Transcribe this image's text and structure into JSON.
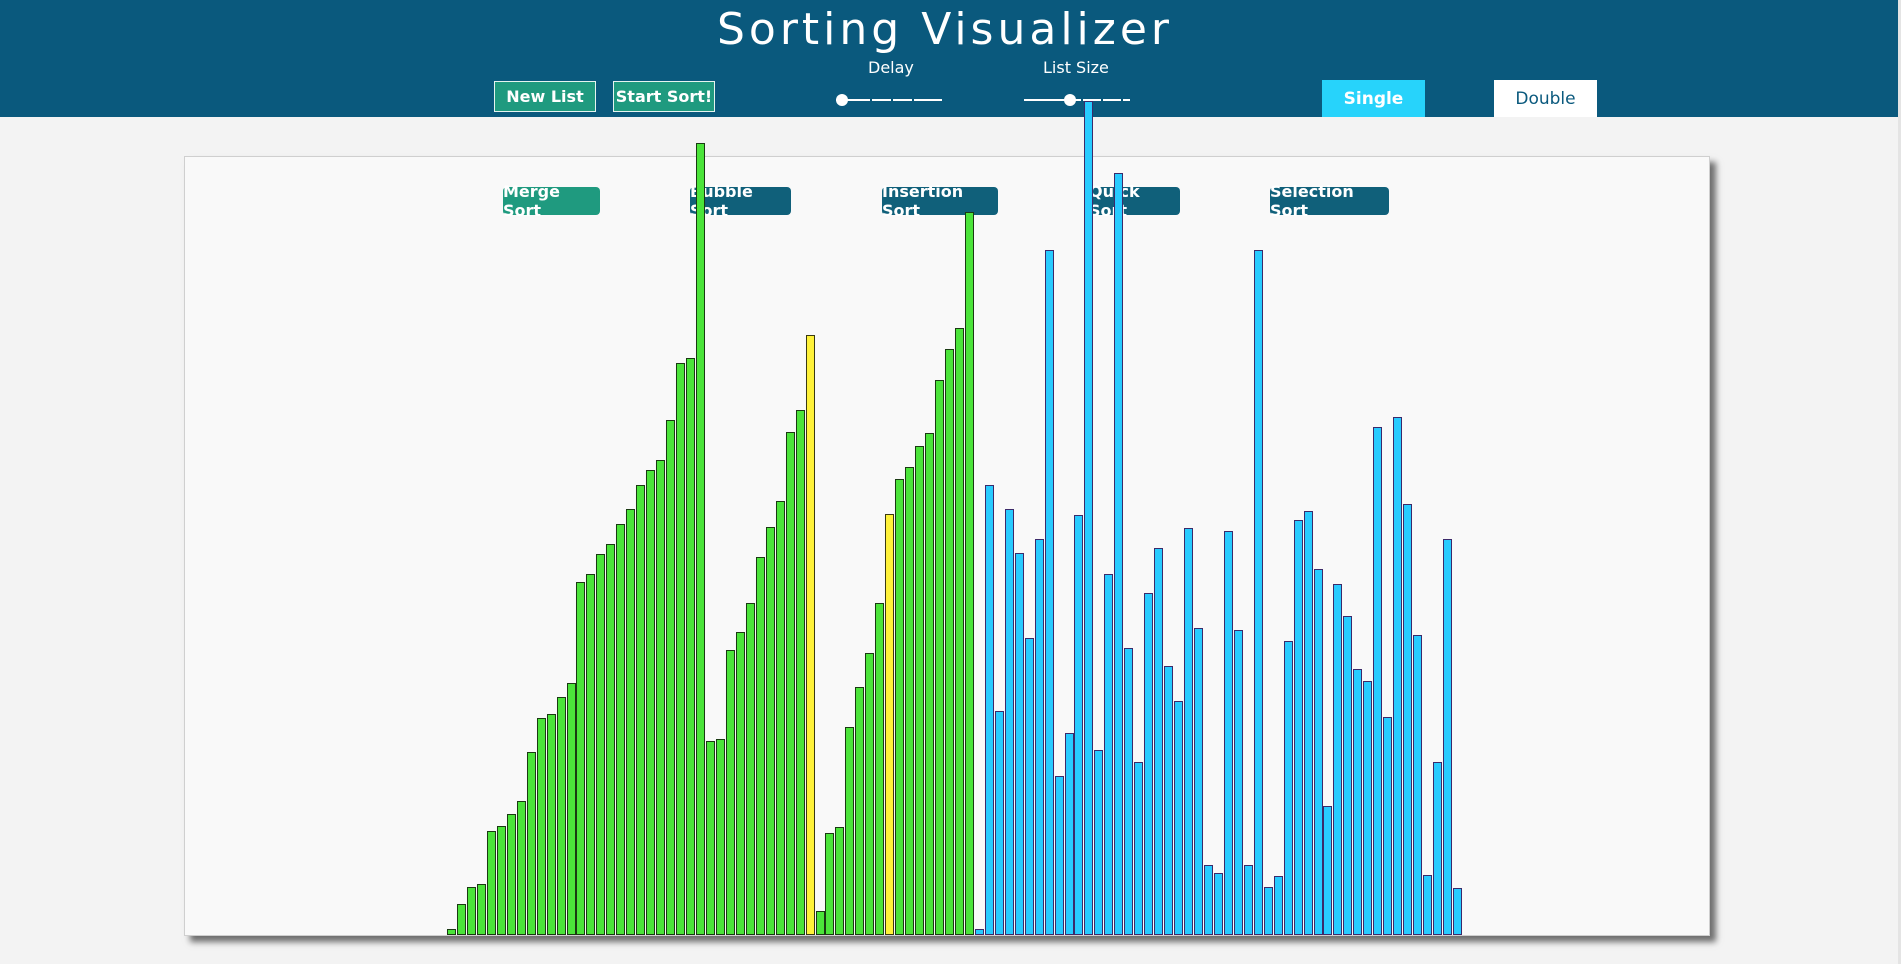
{
  "header": {
    "title": "Sorting Visualizer",
    "new_list_label": "New List",
    "start_sort_label": "Start Sort!",
    "delay_label": "Delay",
    "list_size_label": "List Size",
    "delay_value_fraction": 0.0,
    "list_size_value_fraction": 0.43,
    "mode_single_label": "Single",
    "mode_double_label": "Double",
    "mode_selected": "Single"
  },
  "algorithms": [
    {
      "label": "Merge Sort",
      "selected": true
    },
    {
      "label": "Bubble Sort",
      "selected": false
    },
    {
      "label": "Insertion Sort",
      "selected": false
    },
    {
      "label": "Quick Sort",
      "selected": false
    },
    {
      "label": "Selection Sort",
      "selected": false
    }
  ],
  "colors": {
    "header_bg": "#0a597d",
    "button_green": "#1f9a7f",
    "sorted_bar": "#4be43a",
    "compare_bar": "#fff23a",
    "unsorted_bar": "#28cbff",
    "single_active": "#27d3fb"
  },
  "bars": {
    "max_value": 700,
    "values": [
      6,
      31,
      48,
      52,
      105,
      110,
      122,
      135,
      185,
      219,
      223,
      240,
      255,
      357,
      365,
      385,
      395,
      415,
      430,
      455,
      470,
      480,
      520,
      578,
      583,
      800,
      196,
      198,
      288,
      306,
      335,
      382,
      412,
      438,
      508,
      530,
      606,
      24,
      103,
      109,
      210,
      250,
      285,
      335,
      425,
      461,
      473,
      494,
      507,
      561,
      592,
      613,
      730,
      6,
      455,
      226,
      430,
      386,
      300,
      400,
      692,
      161,
      204,
      424,
      842,
      187,
      365,
      770,
      290,
      175,
      345,
      391,
      272,
      236,
      411,
      310,
      71,
      63,
      408,
      308,
      71,
      692,
      48,
      60,
      297,
      419,
      428,
      370,
      130,
      355,
      322,
      269,
      257,
      513,
      220,
      523,
      435,
      303,
      61,
      175,
      400,
      47
    ],
    "states": [
      "sorted",
      "sorted",
      "sorted",
      "sorted",
      "sorted",
      "sorted",
      "sorted",
      "sorted",
      "sorted",
      "sorted",
      "sorted",
      "sorted",
      "sorted",
      "sorted",
      "sorted",
      "sorted",
      "sorted",
      "sorted",
      "sorted",
      "sorted",
      "sorted",
      "sorted",
      "sorted",
      "sorted",
      "sorted",
      "sorted",
      "sorted",
      "sorted",
      "sorted",
      "sorted",
      "sorted",
      "sorted",
      "sorted",
      "sorted",
      "sorted",
      "sorted",
      "compare",
      "sorted",
      "sorted",
      "sorted",
      "sorted",
      "sorted",
      "sorted",
      "sorted",
      "compare",
      "sorted",
      "sorted",
      "sorted",
      "sorted",
      "sorted",
      "sorted",
      "sorted",
      "sorted",
      "unsorted",
      "unsorted",
      "unsorted",
      "unsorted",
      "unsorted",
      "unsorted",
      "unsorted",
      "unsorted",
      "unsorted",
      "unsorted",
      "unsorted",
      "unsorted",
      "unsorted",
      "unsorted",
      "unsorted",
      "unsorted",
      "unsorted",
      "unsorted",
      "unsorted",
      "unsorted",
      "unsorted",
      "unsorted",
      "unsorted",
      "unsorted",
      "unsorted",
      "unsorted",
      "unsorted",
      "unsorted",
      "unsorted",
      "unsorted",
      "unsorted",
      "unsorted",
      "unsorted",
      "unsorted",
      "unsorted",
      "unsorted",
      "unsorted",
      "unsorted",
      "unsorted",
      "unsorted",
      "unsorted",
      "unsorted",
      "unsorted",
      "unsorted",
      "unsorted",
      "unsorted",
      "unsorted",
      "unsorted",
      "unsorted"
    ]
  }
}
